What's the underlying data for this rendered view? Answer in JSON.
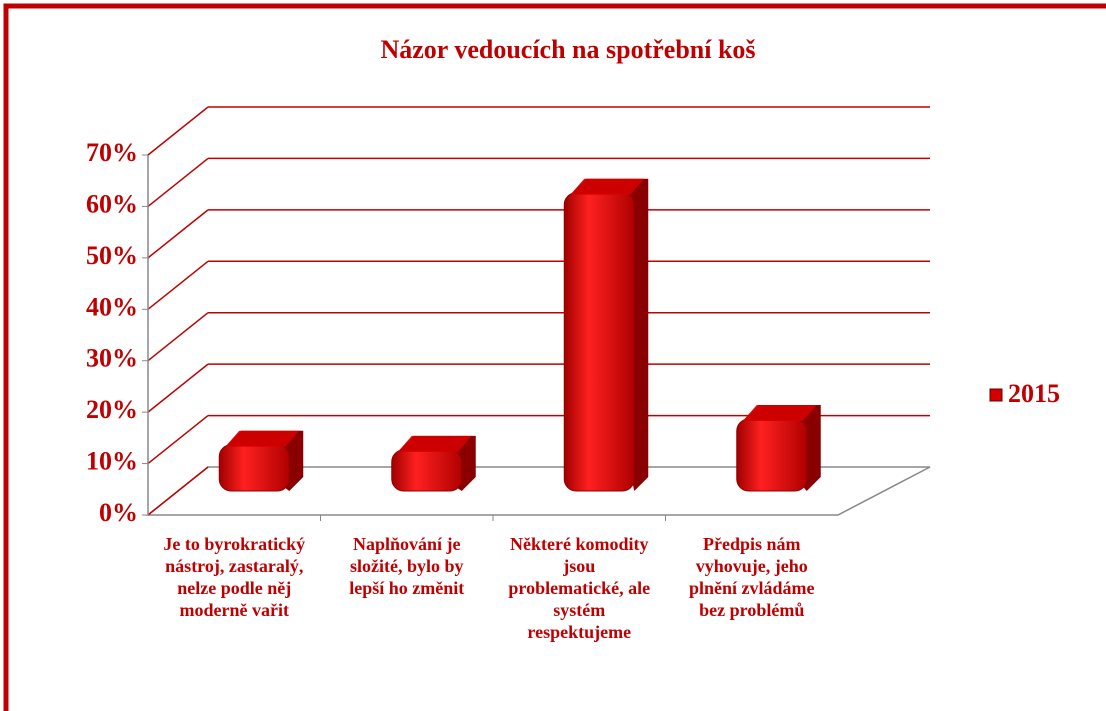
{
  "chart_data": {
    "type": "bar3d",
    "title": "Názor vedoucích na spotřební koš",
    "categories": [
      "Je to byrokratický nástroj, zastaralý, nelze podle něj moderně vařit",
      "Naplňování je složité, bylo by lepší ho změnit",
      "Některé komodity jsou problematické, ale systém respektujeme",
      "Předpis nám vyhovuje, jeho plnění zvládáme bez problémů"
    ],
    "series": [
      {
        "name": "2015",
        "color": "#d40000",
        "values": [
          9,
          8,
          58,
          14
        ]
      }
    ],
    "ylim": [
      0,
      70
    ],
    "yticks": [
      {
        "value": 0,
        "label": "0%"
      },
      {
        "value": 10,
        "label": "10%"
      },
      {
        "value": 20,
        "label": "20%"
      },
      {
        "value": 30,
        "label": "30%"
      },
      {
        "value": 40,
        "label": "40%"
      },
      {
        "value": 50,
        "label": "50%"
      },
      {
        "value": 60,
        "label": "60%"
      },
      {
        "value": 70,
        "label": "70%"
      }
    ],
    "grid": true,
    "legend": "right"
  }
}
